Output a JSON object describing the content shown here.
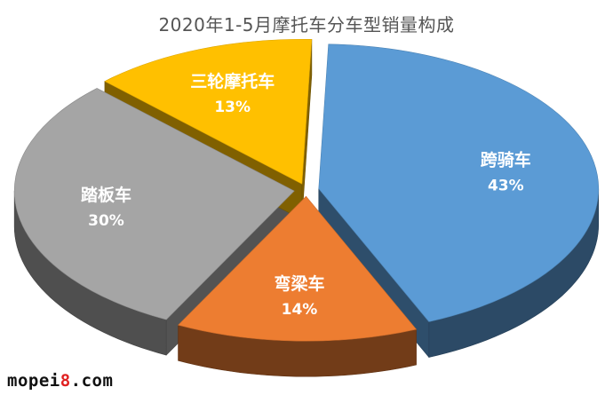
{
  "chart_data": {
    "type": "pie",
    "title": "2020年1-5月摩托车分车型销量构成",
    "slices": [
      {
        "label": "跨骑车",
        "value": 43,
        "value_label": "43%",
        "color": "#5b9bd5"
      },
      {
        "label": "弯梁车",
        "value": 14,
        "value_label": "14%",
        "color": "#ed7d31"
      },
      {
        "label": "踏板车",
        "value": 30,
        "value_label": "30%",
        "color": "#a5a5a5"
      },
      {
        "label": "三轮摩托车",
        "value": 13,
        "value_label": "13%",
        "color": "#ffc000"
      }
    ],
    "style": "3d-exploded",
    "legend": "none"
  },
  "watermark": {
    "text_main": "mopei",
    "text_accent": "8",
    "text_tail": ".com",
    "accent_color": "#e02020"
  }
}
